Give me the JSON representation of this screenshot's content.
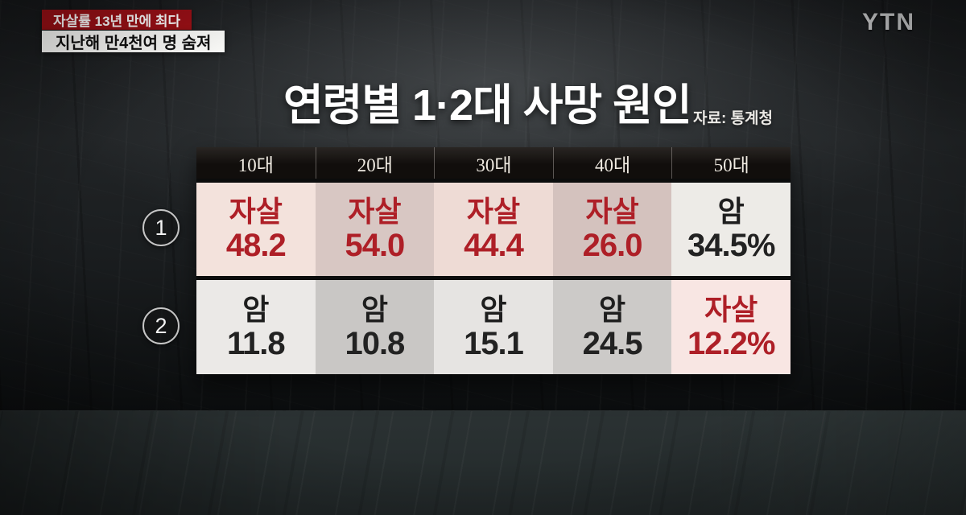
{
  "ticker": {
    "headline": "자살률 13년 만에 최다",
    "subheadline": "지난해 만4천여 명 숨져"
  },
  "channel": {
    "logo": "YTN"
  },
  "title": {
    "text": "연령별 1·2대 사망 원인",
    "source": "자료: 통계청"
  },
  "colors": {
    "banner_red": "#9c1016",
    "accent_red_text": "#ae1f27",
    "suicide_highlight_pink": "#f3e2dc",
    "neutral_cell_gray": "#e6e4e2",
    "header_bar": "#110e0c",
    "floor": "#272e2f"
  },
  "chart_data": {
    "type": "table",
    "title": "연령별 1·2대 사망 원인",
    "source": "자료: 통계청",
    "unit_note": "values are percentages; % sign shown only in last column",
    "columns": [
      "10대",
      "20대",
      "30대",
      "40대",
      "50대"
    ],
    "rows": [
      {
        "rank": "1",
        "cells": [
          {
            "cause": "자살",
            "value": "48.2",
            "highlight": true
          },
          {
            "cause": "자살",
            "value": "54.0",
            "highlight": true
          },
          {
            "cause": "자살",
            "value": "44.4",
            "highlight": true
          },
          {
            "cause": "자살",
            "value": "26.0",
            "highlight": true
          },
          {
            "cause": "암",
            "value": "34.5%",
            "highlight": false
          }
        ]
      },
      {
        "rank": "2",
        "cells": [
          {
            "cause": "암",
            "value": "11.8",
            "highlight": false
          },
          {
            "cause": "암",
            "value": "10.8",
            "highlight": false
          },
          {
            "cause": "암",
            "value": "15.1",
            "highlight": false
          },
          {
            "cause": "암",
            "value": "24.5",
            "highlight": false
          },
          {
            "cause": "자살",
            "value": "12.2%",
            "highlight": true
          }
        ]
      }
    ]
  }
}
